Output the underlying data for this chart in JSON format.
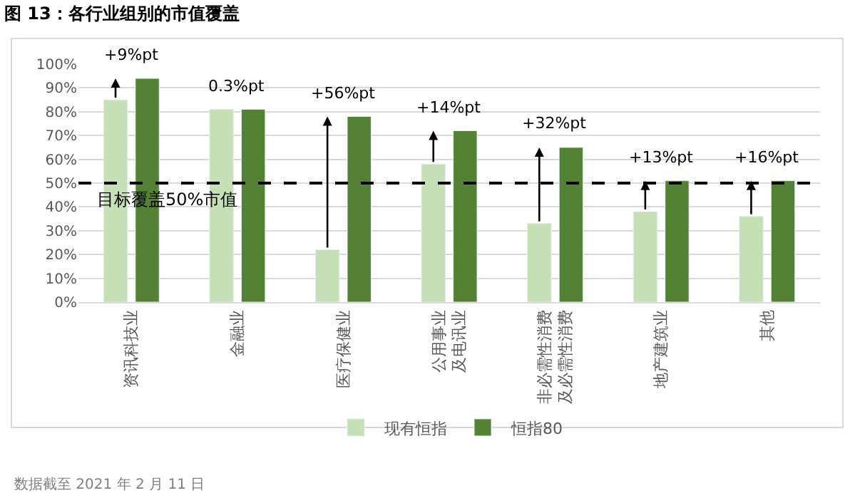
{
  "chart_data": {
    "type": "bar",
    "title": "图 13：各行业组别的市值覆盖",
    "categories": [
      "资讯科技业",
      "金融业",
      "医疗保健业",
      "公用事业及电讯业",
      "非必需性消费及必需性消费",
      "地产建筑业",
      "其他"
    ],
    "series": [
      {
        "name": "现有恒指",
        "color": "#c5e0b4",
        "values": [
          85,
          81,
          22,
          58,
          33,
          38,
          36
        ]
      },
      {
        "name": "恒指80",
        "color": "#548235",
        "values": [
          94,
          81,
          78,
          72,
          65,
          51,
          51
        ]
      }
    ],
    "ylim": [
      0,
      100
    ],
    "yticks": [
      {
        "value": 0,
        "label": "0%"
      },
      {
        "value": 10,
        "label": "10%"
      },
      {
        "value": 20,
        "label": "20%"
      },
      {
        "value": 30,
        "label": "30%"
      },
      {
        "value": 40,
        "label": "40%"
      },
      {
        "value": 50,
        "label": "50%"
      },
      {
        "value": 60,
        "label": "60%"
      },
      {
        "value": 70,
        "label": "70%"
      },
      {
        "value": 80,
        "label": "80%"
      },
      {
        "value": 90,
        "label": "90%"
      },
      {
        "value": 100,
        "label": "100%"
      }
    ],
    "grid": "y",
    "legend": "bottom",
    "ref_lines": [
      {
        "axis": "y",
        "value": 50,
        "label": "目标覆盖50%市值",
        "color": "#000000",
        "line_style": "dashed"
      }
    ],
    "annotations": [
      {
        "text": "+9%pt",
        "x": "资讯科技业",
        "y": 94
      },
      {
        "text": "0.3%pt",
        "x": "金融业",
        "y": 81
      },
      {
        "text": "+56%pt",
        "x": "医疗保健业",
        "y": 78
      },
      {
        "text": "+14%pt",
        "x": "公用事业及电讯业",
        "y": 72
      },
      {
        "text": "+32%pt",
        "x": "非必需性消费及必需性消费",
        "y": 65
      },
      {
        "text": "+13%pt",
        "x": "地产建筑业",
        "y": 51
      },
      {
        "text": "+16%pt",
        "x": "其他",
        "y": 51
      },
      "数据截至 2021 年 2 月 11 日"
    ]
  }
}
